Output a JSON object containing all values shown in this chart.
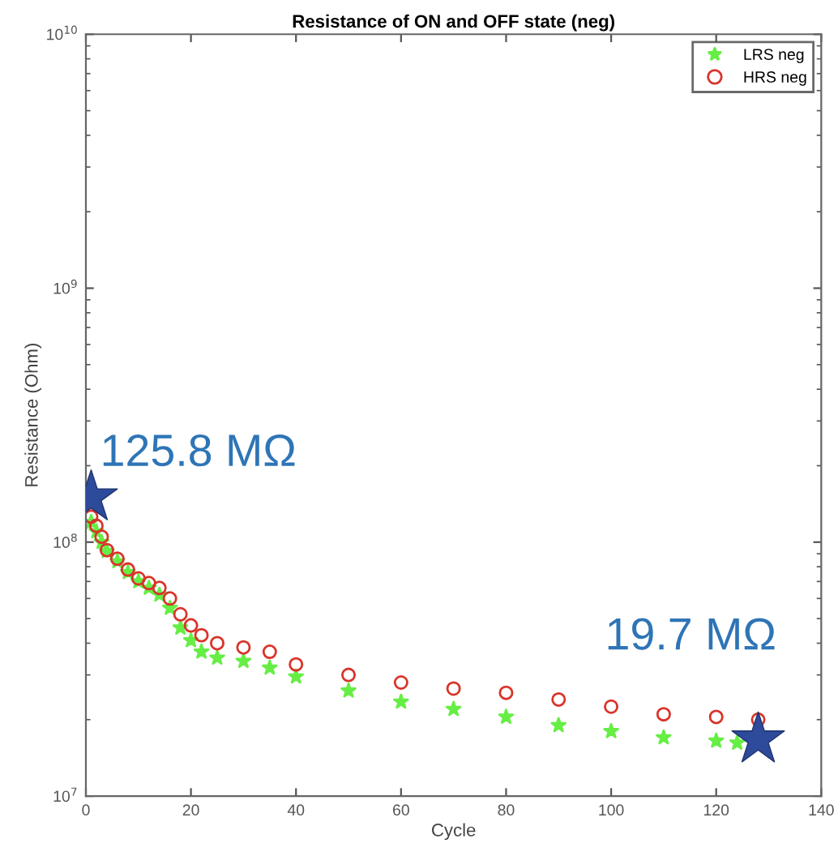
{
  "chart_data": {
    "type": "scatter",
    "title": "Resistance of ON and OFF state (neg)",
    "xlabel": "Cycle",
    "ylabel": "Resistance (Ohm)",
    "log": "y",
    "xlim": [
      0,
      140
    ],
    "xticks": [
      0,
      20,
      40,
      60,
      80,
      100,
      120,
      140
    ],
    "ylim": [
      10000000.0,
      10000000000.0
    ],
    "yticks": [
      {
        "value": 10000000.0,
        "label": "10$^{7}$"
      },
      {
        "value": 100000000.0,
        "label": "10$^{8}$"
      },
      {
        "value": 1000000000.0,
        "label": "10$^{9}$"
      },
      {
        "value": 10000000000.0,
        "label": "10$^{10}$"
      }
    ],
    "legend": "top right",
    "grid": false,
    "series": [
      {
        "name": "LRS neg",
        "color": "#66ee44",
        "marker": "star",
        "x": [
          1,
          2,
          3,
          4,
          6,
          8,
          10,
          12,
          14,
          16,
          18,
          20,
          22,
          25,
          30,
          35,
          40,
          50,
          60,
          70,
          80,
          90,
          100,
          110,
          120,
          124
        ],
        "values": [
          120000000.0,
          110000000.0,
          100000000.0,
          92000000.0,
          84000000.0,
          76000000.0,
          70000000.0,
          66000000.0,
          62000000.0,
          55000000.0,
          46000000.0,
          41000000.0,
          37000000.0,
          35000000.0,
          34000000.0,
          32000000.0,
          29500000.0,
          26000000.0,
          23500000.0,
          22000000.0,
          20500000.0,
          19000000.0,
          18000000.0,
          17000000.0,
          16500000.0,
          16200000.0
        ]
      },
      {
        "name": "HRS neg",
        "color": "#d9342b",
        "marker": "circle",
        "x": [
          1,
          2,
          3,
          4,
          6,
          8,
          10,
          12,
          14,
          16,
          18,
          20,
          22,
          25,
          30,
          35,
          40,
          50,
          60,
          70,
          80,
          90,
          100,
          110,
          120,
          128
        ],
        "values": [
          126000000.0,
          116000000.0,
          105000000.0,
          93000000.0,
          86000000.0,
          78000000.0,
          72000000.0,
          69000000.0,
          66000000.0,
          60000000.0,
          52000000.0,
          47000000.0,
          43000000.0,
          40000000.0,
          38500000.0,
          37000000.0,
          33000000.0,
          30000000.0,
          28000000.0,
          26500000.0,
          25500000.0,
          24000000.0,
          22500000.0,
          21000000.0,
          20500000.0,
          20000000.0
        ]
      },
      {
        "color": "#2e4a9a",
        "marker": "star",
        "x": [
          1,
          128
        ],
        "values": [
          150000000.0,
          16700000.0
        ]
      }
    ],
    "annotations": [
      {
        "text": "125.8 MΩ",
        "x": 1,
        "y": 150000000.0
      },
      {
        "text": "19.7 MΩ",
        "x": 128,
        "y": 16700000.0
      }
    ]
  }
}
